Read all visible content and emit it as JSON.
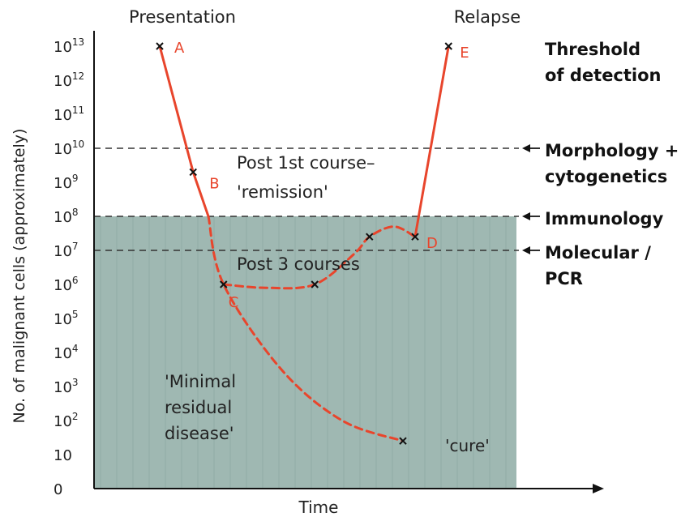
{
  "chart_data": {
    "type": "line",
    "xlabel": "Time",
    "ylabel": "No. of malignant cells (approximately)",
    "y_scale": "log",
    "y_ticks": [
      {
        "exp": 0,
        "base": "0",
        "sup": ""
      },
      {
        "exp": 1,
        "base": "10",
        "sup": ""
      },
      {
        "exp": 2,
        "base": "10",
        "sup": "2"
      },
      {
        "exp": 3,
        "base": "10",
        "sup": "3"
      },
      {
        "exp": 4,
        "base": "10",
        "sup": "4"
      },
      {
        "exp": 5,
        "base": "10",
        "sup": "5"
      },
      {
        "exp": 6,
        "base": "10",
        "sup": "6"
      },
      {
        "exp": 7,
        "base": "10",
        "sup": "7"
      },
      {
        "exp": 8,
        "base": "10",
        "sup": "8"
      },
      {
        "exp": 9,
        "base": "10",
        "sup": "9"
      },
      {
        "exp": 10,
        "base": "10",
        "sup": "10"
      },
      {
        "exp": 11,
        "base": "10",
        "sup": "11"
      },
      {
        "exp": 12,
        "base": "10",
        "sup": "12"
      },
      {
        "exp": 13,
        "base": "10",
        "sup": "13"
      }
    ],
    "top_labels": {
      "presentation": "Presentation",
      "relapse": "Relapse"
    },
    "thresholds": [
      {
        "exp": 10,
        "lines": [
          "Morphology +",
          "cytogenetics"
        ]
      },
      {
        "exp": 8,
        "lines": [
          "Immunology"
        ]
      },
      {
        "exp": 7,
        "lines": [
          "Molecular /",
          "PCR"
        ]
      }
    ],
    "detection_label": [
      "Threshold",
      "of detection"
    ],
    "shaded_below_exp": 8,
    "annotations": {
      "post_first": [
        "Post 1st course–",
        "'remission'"
      ],
      "post_three": "Post 3 courses",
      "mrd": [
        "'Minimal",
        "residual",
        "disease'"
      ],
      "cure": "'cure'"
    },
    "points": [
      {
        "label": "A",
        "t": 2.0,
        "exp": 13.0
      },
      {
        "label": "B",
        "t": 3.1,
        "exp": 9.3
      },
      {
        "label": "C",
        "t": 4.1,
        "exp": 6.0
      },
      {
        "label": "",
        "t": 7.1,
        "exp": 6.0
      },
      {
        "label": "",
        "t": 8.9,
        "exp": 7.4
      },
      {
        "label": "D",
        "t": 10.4,
        "exp": 7.4
      },
      {
        "label": "E",
        "t": 11.5,
        "exp": 13.0
      },
      {
        "label": "",
        "t": 10.0,
        "exp": 1.4
      }
    ],
    "series": [
      {
        "style": "solid",
        "points": [
          [
            2.0,
            13.0
          ],
          [
            3.1,
            9.3
          ],
          [
            3.6,
            8.0
          ]
        ]
      },
      {
        "style": "dashed",
        "points": [
          [
            3.6,
            8.0
          ],
          [
            4.1,
            6.0
          ],
          [
            6.0,
            3.5
          ],
          [
            8.0,
            2.0
          ],
          [
            10.0,
            1.4
          ]
        ]
      },
      {
        "style": "dashed",
        "points": [
          [
            4.1,
            6.0
          ],
          [
            5.5,
            5.9
          ],
          [
            7.1,
            6.0
          ],
          [
            8.4,
            6.9
          ],
          [
            8.9,
            7.4
          ],
          [
            9.7,
            7.7
          ],
          [
            10.4,
            7.4
          ]
        ]
      },
      {
        "style": "solid",
        "points": [
          [
            10.4,
            7.4
          ],
          [
            11.5,
            13.0
          ]
        ]
      }
    ],
    "colors": {
      "curve": "#e8452c",
      "shade": "#9fb8b2",
      "threshold": "#333333"
    }
  }
}
